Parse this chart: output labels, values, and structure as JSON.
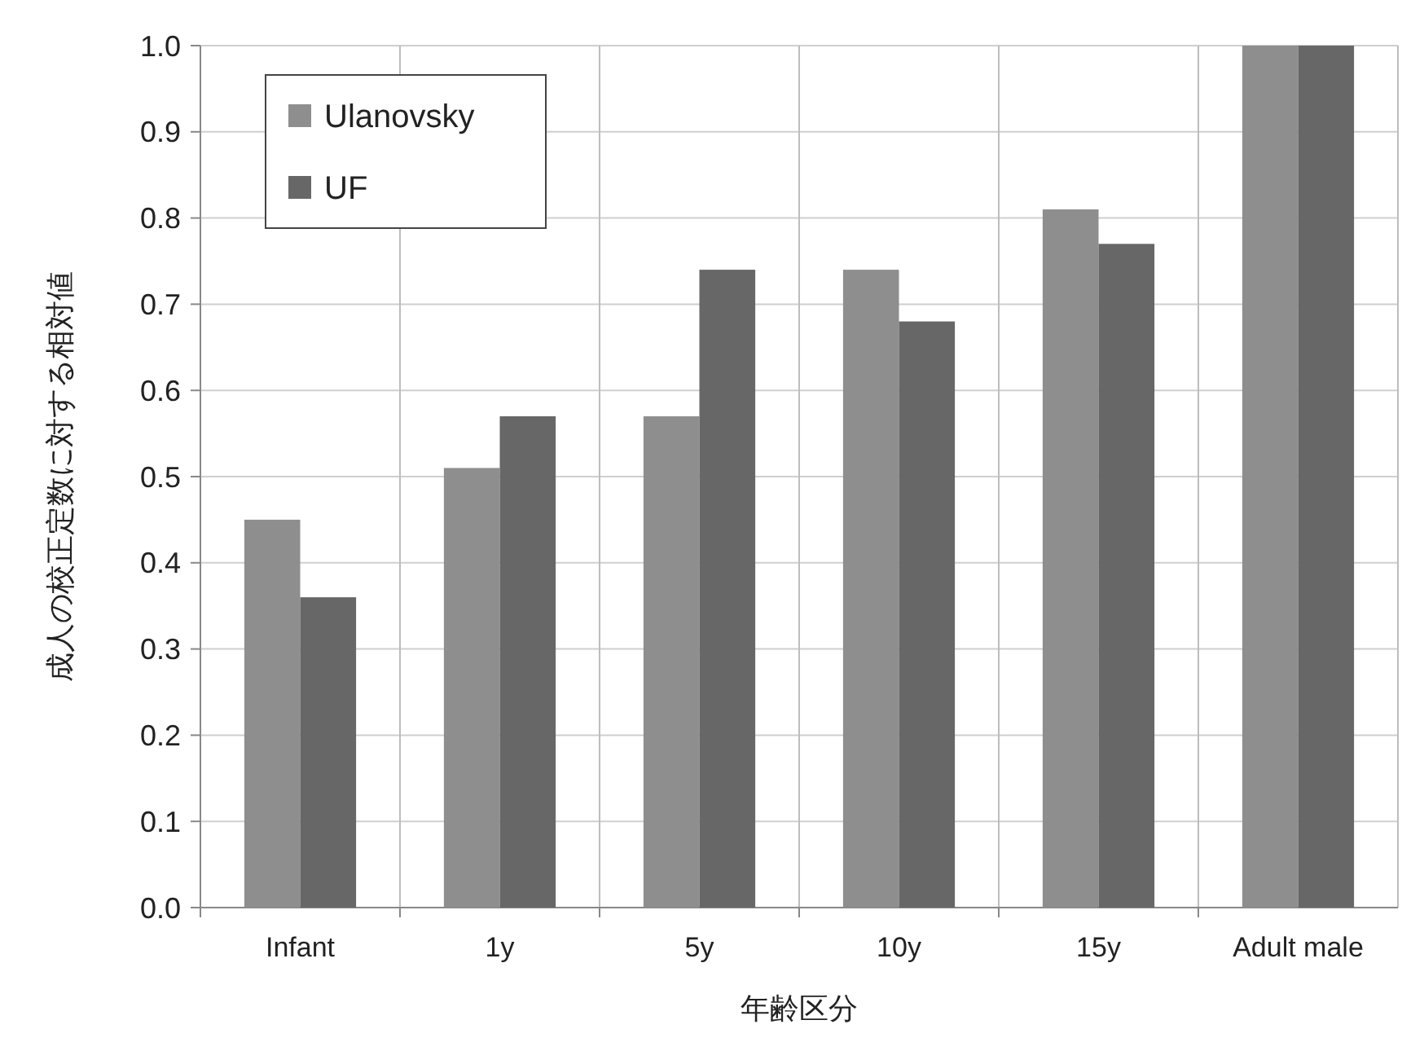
{
  "chart_data": {
    "type": "bar",
    "xlabel": "年齢区分",
    "ylabel": "成人の校正定数に対する相対値",
    "categories": [
      "Infant",
      "1y",
      "5y",
      "10y",
      "15y",
      "Adult male"
    ],
    "series": [
      {
        "name": "Ulanovsky",
        "color": "#8e8e8e",
        "values": [
          0.45,
          0.51,
          0.57,
          0.74,
          0.81,
          1.0
        ]
      },
      {
        "name": "UF",
        "color": "#676767",
        "values": [
          0.36,
          0.57,
          0.74,
          0.68,
          0.77,
          1.0
        ]
      }
    ],
    "ylim": [
      0,
      1
    ],
    "yticks": [
      {
        "value": 0,
        "label": "0.0"
      },
      {
        "value": 0.1,
        "label": "0.1"
      },
      {
        "value": 0.2,
        "label": "0.2"
      },
      {
        "value": 0.3,
        "label": "0.3"
      },
      {
        "value": 0.4,
        "label": "0.4"
      },
      {
        "value": 0.5,
        "label": "0.5"
      },
      {
        "value": 0.6,
        "label": "0.6"
      },
      {
        "value": 0.7,
        "label": "0.7"
      },
      {
        "value": 0.8,
        "label": "0.8"
      },
      {
        "value": 0.9,
        "label": "0.9"
      },
      {
        "value": 1,
        "label": "1.0"
      }
    ],
    "grid": true,
    "legend": "top left"
  }
}
